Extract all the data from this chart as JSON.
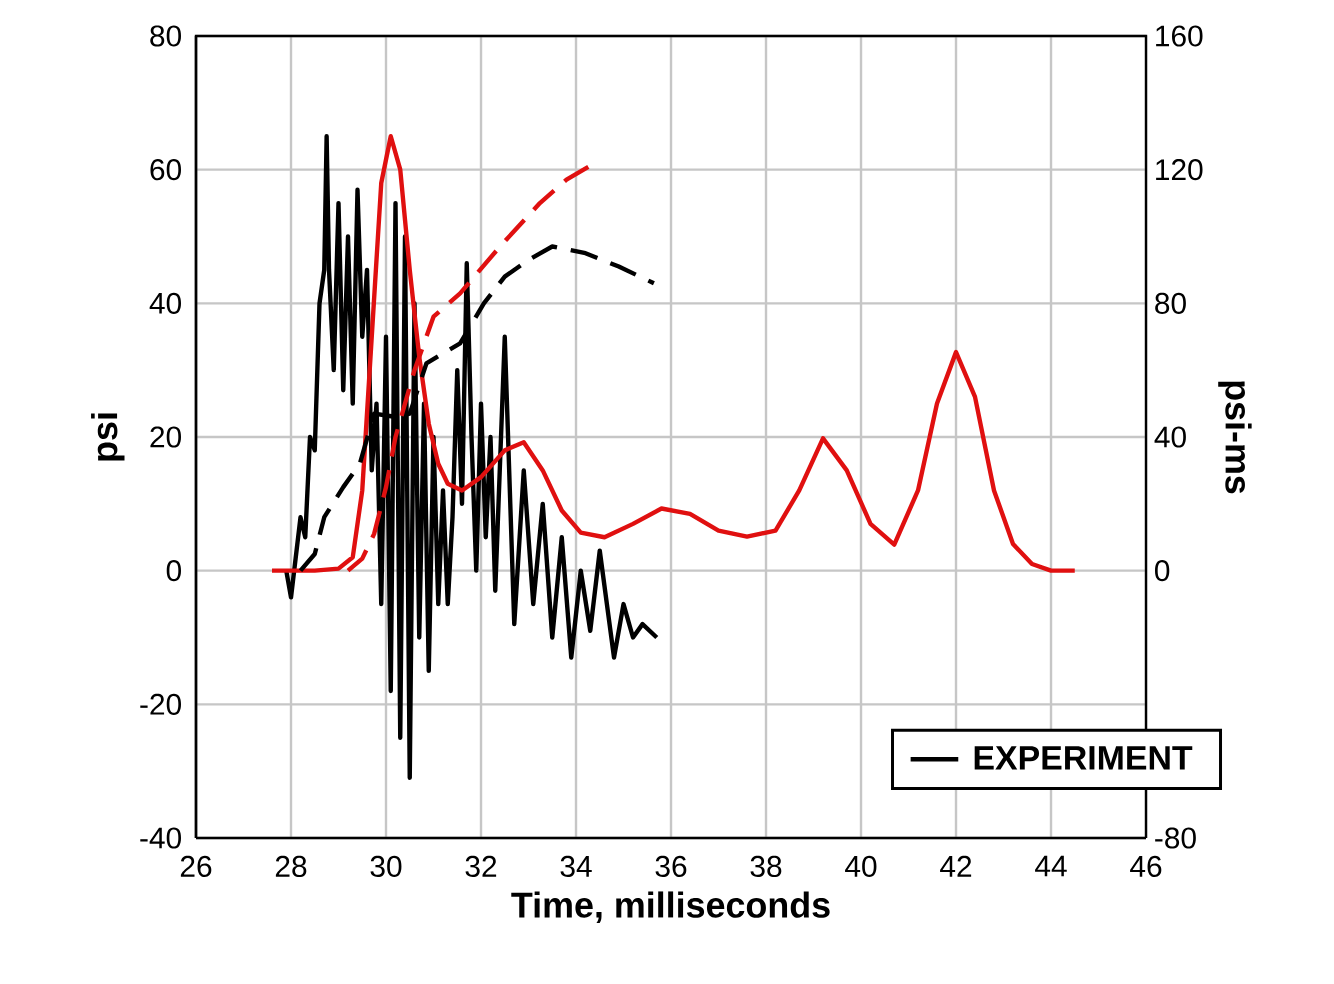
{
  "chart_data": {
    "type": "line",
    "xlabel": "Time, milliseconds",
    "ylabel": "psi",
    "y2label": "psi-ms",
    "xlim": [
      26,
      46
    ],
    "xticks": [
      26,
      28,
      30,
      32,
      34,
      36,
      38,
      40,
      42,
      44,
      46
    ],
    "ylim": [
      -40,
      80
    ],
    "yticks": [
      -40,
      -20,
      0,
      20,
      40,
      60,
      80
    ],
    "y2lim": [
      -80,
      160
    ],
    "y2ticks": [
      -80,
      0,
      40,
      80,
      120,
      160
    ],
    "grid": true,
    "legend": "bottom right",
    "series": [
      {
        "name": "EXPERIMENT",
        "color": "#000000",
        "line_style": "solid",
        "x": [
          27.9,
          28.0,
          28.1,
          28.2,
          28.3,
          28.4,
          28.5,
          28.6,
          28.7,
          28.75,
          28.8,
          28.9,
          29.0,
          29.1,
          29.2,
          29.3,
          29.4,
          29.5,
          29.6,
          29.7,
          29.8,
          29.9,
          30.0,
          30.1,
          30.2,
          30.3,
          30.4,
          30.5,
          30.6,
          30.7,
          30.8,
          30.9,
          31.0,
          31.1,
          31.2,
          31.3,
          31.4,
          31.5,
          31.6,
          31.7,
          31.8,
          31.9,
          32.0,
          32.1,
          32.2,
          32.3,
          32.5,
          32.7,
          32.9,
          33.1,
          33.3,
          33.5,
          33.7,
          33.9,
          34.1,
          34.3,
          34.5,
          34.8,
          35.0,
          35.2,
          35.4,
          35.7
        ],
        "values": [
          0,
          -4,
          2,
          8,
          5,
          20,
          18,
          40,
          45,
          65,
          45,
          30,
          55,
          27,
          50,
          25,
          57,
          35,
          45,
          15,
          25,
          -5,
          35,
          -18,
          55,
          -25,
          50,
          -31,
          40,
          -10,
          25,
          -15,
          20,
          -5,
          12,
          -5,
          8,
          30,
          10,
          46,
          20,
          0,
          25,
          5,
          20,
          -3,
          35,
          -8,
          15,
          -5,
          10,
          -10,
          5,
          -13,
          0,
          -9,
          3,
          -13,
          -5,
          -10,
          -8,
          -10
        ]
      },
      {
        "color": "#e01010",
        "line_style": "solid",
        "x": [
          27.6,
          28.5,
          29.0,
          29.3,
          29.5,
          29.7,
          29.9,
          30.1,
          30.3,
          30.5,
          30.7,
          30.9,
          31.1,
          31.3,
          31.6,
          32.0,
          32.5,
          32.9,
          33.3,
          33.7,
          34.1,
          34.6,
          35.2,
          35.8,
          36.4,
          37.0,
          37.6,
          38.2,
          38.7,
          39.2,
          39.7,
          40.2,
          40.7,
          41.2,
          41.6,
          42.0,
          42.4,
          42.8,
          43.2,
          43.6,
          44.0,
          44.5
        ],
        "values": [
          0,
          0,
          0.3,
          2,
          12,
          35,
          58,
          65,
          60,
          45,
          32,
          22,
          16,
          13,
          12,
          14,
          18,
          19.2,
          15,
          9,
          5.7,
          5,
          7,
          9.3,
          8.5,
          6,
          5.1,
          6,
          12,
          19.8,
          15,
          7,
          3.9,
          12,
          25,
          32.7,
          26,
          12,
          4,
          1,
          0,
          0
        ]
      },
      {
        "color": "#000000",
        "line_style": "dashed",
        "axis": "y2",
        "x": [
          28.2,
          28.5,
          28.7,
          29.1,
          29.45,
          29.75,
          30.2,
          30.5,
          30.85,
          31.2,
          31.56,
          32.06,
          32.5,
          33.0,
          33.5,
          34.2,
          34.9,
          35.64
        ],
        "values": [
          0,
          5,
          16,
          25,
          32,
          47,
          46,
          47,
          62,
          65,
          68,
          80,
          88,
          93,
          97,
          95,
          91,
          86
        ]
      },
      {
        "color": "#e01010",
        "line_style": "dashed",
        "axis": "y2",
        "x": [
          29.2,
          29.5,
          29.75,
          30.0,
          30.2,
          30.6,
          31.0,
          31.56,
          32.4,
          33.24,
          33.8,
          34.4
        ],
        "values": [
          0,
          3.6,
          11,
          25,
          40,
          60,
          76,
          83,
          97,
          110,
          117,
          122
        ]
      }
    ]
  }
}
